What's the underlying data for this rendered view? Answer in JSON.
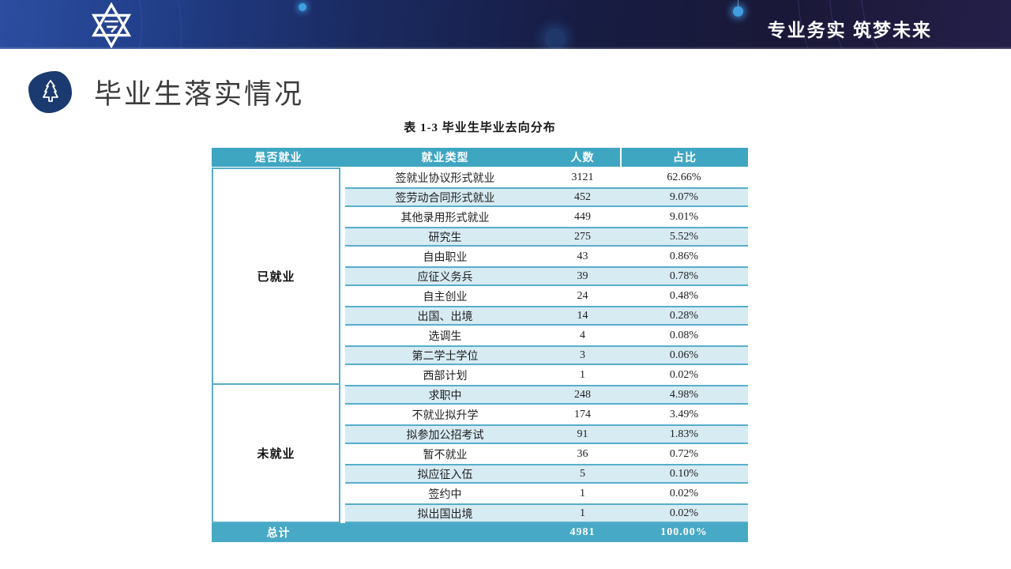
{
  "topbar": {
    "slogan": "专业务实 筑梦未来",
    "logo_name": "university-emblem"
  },
  "header": {
    "title": "毕业生落实情况"
  },
  "table": {
    "caption": "表 1-3 毕业生毕业去向分布",
    "columns": [
      "是否就业",
      "就业类型",
      "人数",
      "占比"
    ],
    "groups": [
      {
        "label": "已就业",
        "rows": [
          {
            "type": "签就业协议形式就业",
            "count": "3121",
            "pct": "62.66%"
          },
          {
            "type": "签劳动合同形式就业",
            "count": "452",
            "pct": "9.07%"
          },
          {
            "type": "其他录用形式就业",
            "count": "449",
            "pct": "9.01%"
          },
          {
            "type": "研究生",
            "count": "275",
            "pct": "5.52%"
          },
          {
            "type": "自由职业",
            "count": "43",
            "pct": "0.86%"
          },
          {
            "type": "应征义务兵",
            "count": "39",
            "pct": "0.78%"
          },
          {
            "type": "自主创业",
            "count": "24",
            "pct": "0.48%"
          },
          {
            "type": "出国、出境",
            "count": "14",
            "pct": "0.28%"
          },
          {
            "type": "选调生",
            "count": "4",
            "pct": "0.08%"
          },
          {
            "type": "第二学士学位",
            "count": "3",
            "pct": "0.06%"
          },
          {
            "type": "西部计划",
            "count": "1",
            "pct": "0.02%"
          }
        ]
      },
      {
        "label": "未就业",
        "rows": [
          {
            "type": "求职中",
            "count": "248",
            "pct": "4.98%"
          },
          {
            "type": "不就业拟升学",
            "count": "174",
            "pct": "3.49%"
          },
          {
            "type": "拟参加公招考试",
            "count": "91",
            "pct": "1.83%"
          },
          {
            "type": "暂不就业",
            "count": "36",
            "pct": "0.72%"
          },
          {
            "type": "拟应征入伍",
            "count": "5",
            "pct": "0.10%"
          },
          {
            "type": "签约中",
            "count": "1",
            "pct": "0.02%"
          },
          {
            "type": "拟出国出境",
            "count": "1",
            "pct": "0.02%"
          }
        ]
      }
    ],
    "total": {
      "label": "总计",
      "count": "4981",
      "pct": "100.00%"
    }
  },
  "colors": {
    "header_teal": "#3fa6c2",
    "total_teal": "#47a9c5",
    "stripe_blue": "#d7ebf3",
    "stripe_border": "#57aecb",
    "title_blob_navy": "#1b3a70",
    "topbar_left_blue": "#2c4da0",
    "topbar_right_navy": "#241f48"
  }
}
